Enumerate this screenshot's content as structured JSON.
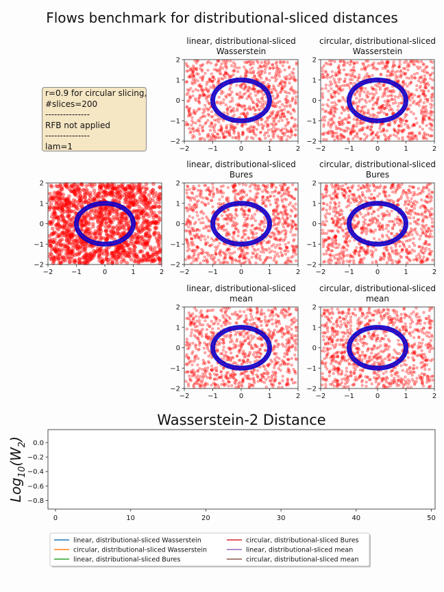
{
  "figure": {
    "suptitle": "Flows benchmark for distributional-sliced distances",
    "info_box": [
      "r=0.9 for circular slicing,",
      "#slices=200",
      "---------------",
      "RFB not applied",
      "---------------",
      "lam=1"
    ]
  },
  "colors": {
    "points": "#ff0000",
    "circle": "#0000cc",
    "series": [
      "#1f77b4",
      "#ff7f0e",
      "#2ca02c",
      "#d62728",
      "#9467bd",
      "#8c564b"
    ]
  },
  "chart_data": [
    {
      "type": "scatter",
      "panel": "source",
      "title": "",
      "xlim": [
        -2,
        2
      ],
      "ylim": [
        -2,
        2
      ],
      "xticks": [
        -2,
        -1,
        0,
        1,
        2
      ],
      "yticks": [
        -2,
        -1,
        0,
        1,
        2
      ],
      "target_circle": {
        "cx": 0,
        "cy": 0,
        "r": 1
      }
    },
    {
      "type": "scatter",
      "panel": "linear-wasserstein",
      "title": [
        "linear, distributional-sliced",
        "Wasserstein"
      ],
      "xlim": [
        -2,
        2
      ],
      "ylim": [
        -2,
        2
      ],
      "xticks": [
        -2,
        -1,
        0,
        1,
        2
      ],
      "yticks": [
        -2,
        -1,
        0,
        1,
        2
      ],
      "target_circle": {
        "cx": 0,
        "cy": 0,
        "r": 1
      }
    },
    {
      "type": "scatter",
      "panel": "circular-wasserstein",
      "title": [
        "circular, distributional-sliced",
        "Wasserstein"
      ],
      "xlim": [
        -2,
        2
      ],
      "ylim": [
        -2,
        2
      ],
      "xticks": [
        -2,
        -1,
        0,
        1,
        2
      ],
      "yticks": [
        -2,
        -1,
        0,
        1,
        2
      ],
      "target_circle": {
        "cx": 0,
        "cy": 0,
        "r": 1
      }
    },
    {
      "type": "scatter",
      "panel": "linear-bures",
      "title": [
        "linear, distributional-sliced",
        "Bures"
      ],
      "xlim": [
        -2,
        2
      ],
      "ylim": [
        -2,
        2
      ],
      "xticks": [
        -2,
        -1,
        0,
        1,
        2
      ],
      "yticks": [
        -2,
        -1,
        0,
        1,
        2
      ],
      "target_circle": {
        "cx": 0,
        "cy": 0,
        "r": 1
      }
    },
    {
      "type": "scatter",
      "panel": "circular-bures",
      "title": [
        "circular, distributional-sliced",
        "Bures"
      ],
      "xlim": [
        -2,
        2
      ],
      "ylim": [
        -2,
        2
      ],
      "xticks": [
        -2,
        -1,
        0,
        1,
        2
      ],
      "yticks": [
        -2,
        -1,
        0,
        1,
        2
      ],
      "target_circle": {
        "cx": 0,
        "cy": 0,
        "r": 1
      }
    },
    {
      "type": "scatter",
      "panel": "linear-mean",
      "title": [
        "linear, distributional-sliced",
        "mean"
      ],
      "xlim": [
        -2,
        2
      ],
      "ylim": [
        -2,
        2
      ],
      "xticks": [
        -2,
        -1,
        0,
        1,
        2
      ],
      "yticks": [
        -2,
        -1,
        0,
        1,
        2
      ],
      "target_circle": {
        "cx": 0,
        "cy": 0,
        "r": 1
      }
    },
    {
      "type": "scatter",
      "panel": "circular-mean",
      "title": [
        "circular, distributional-sliced",
        "mean"
      ],
      "xlim": [
        -2,
        2
      ],
      "ylim": [
        -2,
        2
      ],
      "xticks": [
        -2,
        -1,
        0,
        1,
        2
      ],
      "yticks": [
        -2,
        -1,
        0,
        1,
        2
      ],
      "target_circle": {
        "cx": 0,
        "cy": 0,
        "r": 1
      }
    },
    {
      "type": "line",
      "panel": "distance",
      "title": "Wasserstein-2 Distance",
      "ylabel": "Log10(W2)",
      "xlim": [
        -1,
        50.5
      ],
      "ylim": [
        -0.92,
        0.18
      ],
      "xticks": [
        0,
        10,
        20,
        30,
        40,
        50
      ],
      "yticks": [
        "0.0",
        "−0.2",
        "−0.4",
        "−0.6",
        "−0.8"
      ],
      "ytick_values": [
        0.0,
        -0.2,
        -0.4,
        -0.6,
        -0.8
      ],
      "series": [
        {
          "name": "linear, distributional-sliced Wasserstein",
          "values": []
        },
        {
          "name": "circular, distributional-sliced Wasserstein",
          "values": []
        },
        {
          "name": "linear, distributional-sliced Bures",
          "values": []
        },
        {
          "name": "circular, distributional-sliced Bures",
          "values": []
        },
        {
          "name": "linear, distributional-sliced mean",
          "values": []
        },
        {
          "name": "circular, distributional-sliced mean",
          "values": []
        }
      ],
      "legend": "bottom, two columns"
    }
  ]
}
